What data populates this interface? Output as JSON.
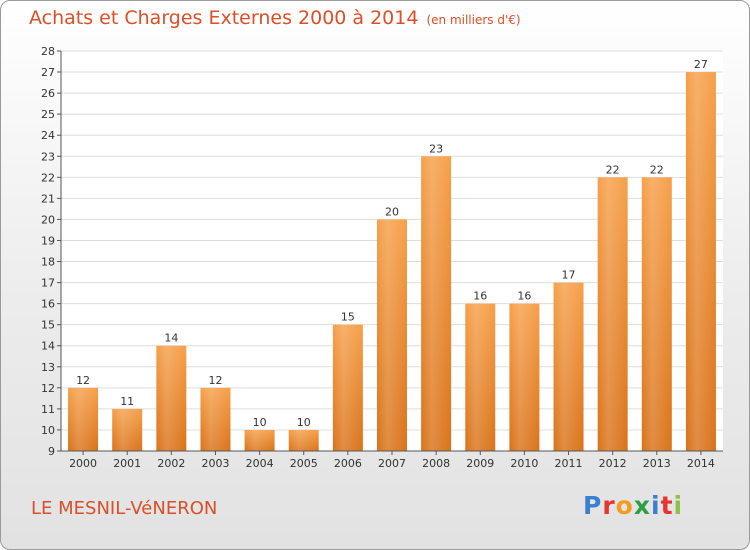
{
  "header": {
    "title": "Achats et Charges Externes 2000 à 2014",
    "subtitle": "(en milliers d'€)"
  },
  "footer": {
    "town": "LE MESNIL-VéNERON",
    "logo": [
      "P",
      "r",
      "o",
      "x",
      "i",
      "t",
      "i"
    ]
  },
  "colors": {
    "bar_top": "#f6a04a",
    "bar_bottom": "#d9731a",
    "title": "#d8502a"
  },
  "chart_data": {
    "type": "bar",
    "title": "Achats et Charges Externes 2000 à 2014",
    "subtitle": "(en milliers d'€)",
    "xlabel": "",
    "ylabel": "",
    "categories": [
      "2000",
      "2001",
      "2002",
      "2003",
      "2004",
      "2005",
      "2006",
      "2007",
      "2008",
      "2009",
      "2010",
      "2011",
      "2012",
      "2013",
      "2014"
    ],
    "values": [
      12,
      11,
      14,
      12,
      10,
      10,
      15,
      20,
      23,
      16,
      16,
      17,
      22,
      22,
      27
    ],
    "ylim": [
      9,
      28
    ],
    "yticks": [
      9,
      10,
      11,
      12,
      13,
      14,
      15,
      16,
      17,
      18,
      19,
      20,
      21,
      22,
      23,
      24,
      25,
      26,
      27,
      28
    ],
    "grid": true,
    "legend": "none"
  }
}
